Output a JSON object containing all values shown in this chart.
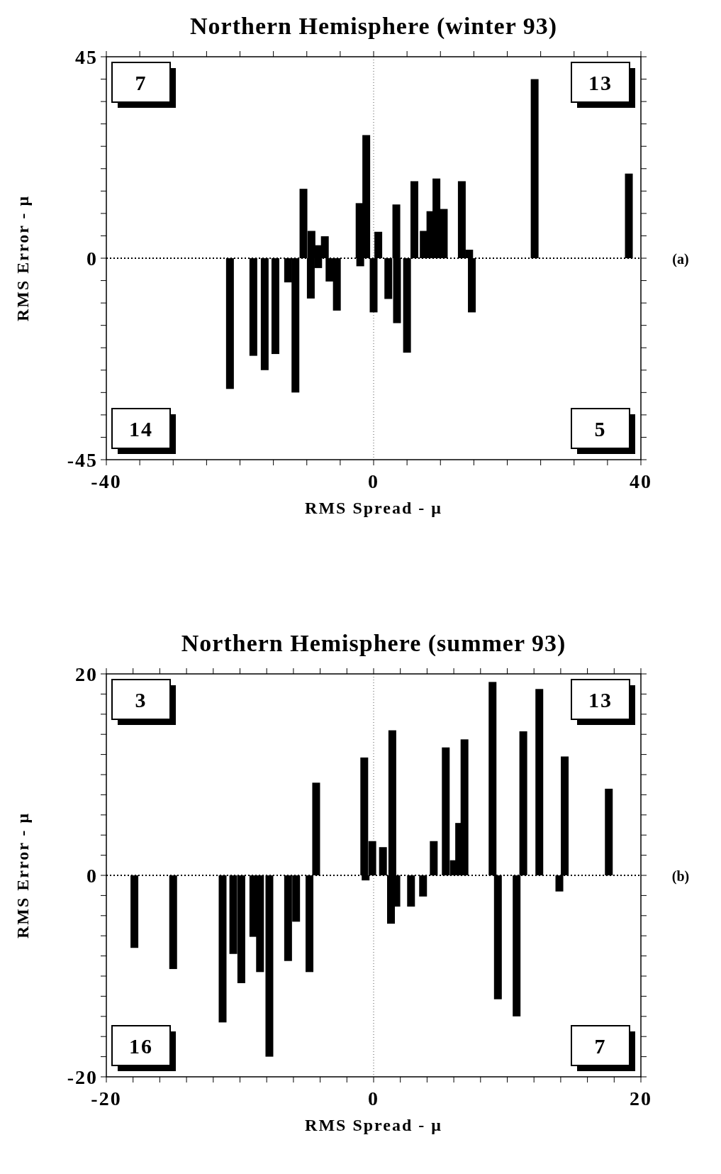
{
  "chart_data": [
    {
      "type": "bar",
      "title": "Northern Hemisphere (winter 93)",
      "xlabel": "RMS Spread - μ",
      "ylabel": "RMS Error - μ",
      "color": "#000000",
      "x": [
        -21.5,
        -18.0,
        -16.3,
        -14.7,
        -12.8,
        -11.7,
        -10.5,
        -9.4,
        -9.3,
        -8.4,
        -8.3,
        -7.3,
        -6.6,
        -5.5,
        -2.1,
        -2.0,
        -1.1,
        0.0,
        0.7,
        2.2,
        3.4,
        3.5,
        5.0,
        6.1,
        7.5,
        8.5,
        9.4,
        10.5,
        13.2,
        14.3,
        14.7,
        24.1,
        38.2
      ],
      "values": [
        -29.2,
        -21.8,
        -25.0,
        -21.4,
        -5.4,
        -30.0,
        15.5,
        -9.0,
        6.1,
        2.9,
        -2.2,
        4.9,
        -5.2,
        -11.7,
        12.3,
        -1.8,
        27.5,
        -12.1,
        5.9,
        -9.1,
        12.0,
        -14.5,
        -21.1,
        17.2,
        6.1,
        10.5,
        17.8,
        11.0,
        17.2,
        1.9,
        -12.1,
        40.0,
        18.9
      ],
      "xlim": [
        -40,
        40
      ],
      "xticks": [
        -40,
        {
          "value": -35,
          "label": null
        },
        {
          "value": -30,
          "label": null
        },
        {
          "value": -25,
          "label": null
        },
        {
          "value": -20,
          "label": null
        },
        {
          "value": -15,
          "label": null
        },
        {
          "value": -10,
          "label": null
        },
        {
          "value": -5,
          "label": null
        },
        0,
        {
          "value": 5,
          "label": null
        },
        {
          "value": 10,
          "label": null
        },
        {
          "value": 15,
          "label": null
        },
        {
          "value": 20,
          "label": null
        },
        {
          "value": 25,
          "label": null
        },
        {
          "value": 30,
          "label": null
        },
        {
          "value": 35,
          "label": null
        },
        40
      ],
      "ylim": [
        -45,
        45
      ],
      "yticks": [
        -45,
        {
          "value": -40,
          "label": null
        },
        {
          "value": -35,
          "label": null
        },
        {
          "value": -30,
          "label": null
        },
        {
          "value": -25,
          "label": null
        },
        {
          "value": -20,
          "label": null
        },
        {
          "value": -15,
          "label": null
        },
        {
          "value": -10,
          "label": null
        },
        {
          "value": -5,
          "label": null
        },
        0,
        {
          "value": 5,
          "label": null
        },
        {
          "value": 10,
          "label": null
        },
        {
          "value": 15,
          "label": null
        },
        {
          "value": 20,
          "label": null
        },
        {
          "value": 25,
          "label": null
        },
        {
          "value": 30,
          "label": null
        },
        {
          "value": 35,
          "label": null
        },
        {
          "value": 40,
          "label": null
        },
        45
      ],
      "ref_lines": [
        {
          "axis": "y",
          "value": 0,
          "line_style": "dotted",
          "color": "#000000"
        },
        {
          "axis": "x",
          "value": 0,
          "line_style": "dotted",
          "color": "#555555"
        }
      ],
      "annotations": [
        "7",
        "13",
        "14",
        "5",
        "(a)"
      ],
      "grid": false
    },
    {
      "type": "bar",
      "title": "Northern Hemisphere (summer 93)",
      "xlabel": "RMS Spread - μ",
      "ylabel": "RMS Error - μ",
      "color": "#000000",
      "x": [
        -17.9,
        -15.0,
        -11.3,
        -10.5,
        -9.9,
        -9.0,
        -8.5,
        -7.8,
        -6.4,
        -5.8,
        -4.8,
        -4.3,
        -0.7,
        -0.6,
        -0.1,
        0.7,
        1.3,
        1.4,
        1.7,
        2.8,
        3.7,
        4.5,
        5.4,
        6.0,
        6.4,
        6.8,
        8.9,
        9.3,
        10.7,
        11.2,
        12.4,
        13.9,
        14.3,
        17.6
      ],
      "values": [
        -7.2,
        -9.3,
        -14.6,
        -7.8,
        -10.7,
        -6.1,
        -9.6,
        -18.0,
        -8.5,
        -4.6,
        -9.6,
        9.2,
        11.7,
        -0.5,
        3.4,
        2.8,
        -4.8,
        14.4,
        -3.1,
        -3.1,
        -2.1,
        3.4,
        12.7,
        1.5,
        5.2,
        13.5,
        19.2,
        -12.3,
        -14.0,
        14.3,
        18.5,
        -1.6,
        11.8,
        8.6
      ],
      "xlim": [
        -20,
        20
      ],
      "xticks": [
        -20,
        {
          "value": -18,
          "label": null
        },
        {
          "value": -16,
          "label": null
        },
        {
          "value": -14,
          "label": null
        },
        {
          "value": -12,
          "label": null
        },
        {
          "value": -10,
          "label": null
        },
        {
          "value": -8,
          "label": null
        },
        {
          "value": -6,
          "label": null
        },
        {
          "value": -4,
          "label": null
        },
        {
          "value": -2,
          "label": null
        },
        0,
        {
          "value": 2,
          "label": null
        },
        {
          "value": 4,
          "label": null
        },
        {
          "value": 6,
          "label": null
        },
        {
          "value": 8,
          "label": null
        },
        {
          "value": 10,
          "label": null
        },
        {
          "value": 12,
          "label": null
        },
        {
          "value": 14,
          "label": null
        },
        {
          "value": 16,
          "label": null
        },
        {
          "value": 18,
          "label": null
        },
        20
      ],
      "ylim": [
        -20,
        20
      ],
      "yticks": [
        -20,
        {
          "value": -18,
          "label": null
        },
        {
          "value": -16,
          "label": null
        },
        {
          "value": -14,
          "label": null
        },
        {
          "value": -12,
          "label": null
        },
        {
          "value": -10,
          "label": null
        },
        {
          "value": -8,
          "label": null
        },
        {
          "value": -6,
          "label": null
        },
        {
          "value": -4,
          "label": null
        },
        {
          "value": -2,
          "label": null
        },
        0,
        {
          "value": 2,
          "label": null
        },
        {
          "value": 4,
          "label": null
        },
        {
          "value": 6,
          "label": null
        },
        {
          "value": 8,
          "label": null
        },
        {
          "value": 10,
          "label": null
        },
        {
          "value": 12,
          "label": null
        },
        {
          "value": 14,
          "label": null
        },
        {
          "value": 16,
          "label": null
        },
        {
          "value": 18,
          "label": null
        },
        20
      ],
      "ref_lines": [
        {
          "axis": "y",
          "value": 0,
          "line_style": "dotted",
          "color": "#000000"
        },
        {
          "axis": "x",
          "value": 0,
          "line_style": "dotted",
          "color": "#555555"
        }
      ],
      "annotations": [
        "3",
        "13",
        "16",
        "7",
        "(b)"
      ],
      "grid": false
    }
  ]
}
